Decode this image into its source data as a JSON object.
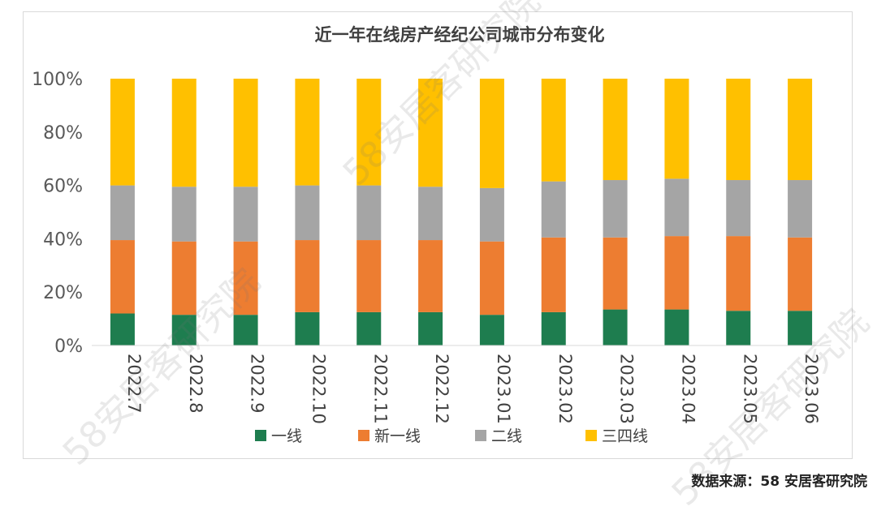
{
  "chart_data": {
    "type": "bar",
    "stacked": true,
    "title": "近一年在线房产经纪公司城市分布变化",
    "categories": [
      "2022.7",
      "2022.8",
      "2022.9",
      "2022.10",
      "2022.11",
      "2022.12",
      "2023.01",
      "2023.02",
      "2023.03",
      "2023.04",
      "2023.05",
      "2023.06"
    ],
    "series": [
      {
        "name": "一线",
        "color": "#1e7d4f",
        "values": [
          12,
          11.5,
          11.5,
          12.5,
          12.5,
          12.5,
          11.5,
          12.5,
          13.5,
          13.5,
          13,
          13
        ]
      },
      {
        "name": "新一线",
        "color": "#ed7d31",
        "values": [
          27.5,
          27.5,
          27.5,
          27,
          27,
          27,
          27.5,
          28,
          27,
          27.5,
          28,
          27.5
        ]
      },
      {
        "name": "二线",
        "color": "#a5a5a5",
        "values": [
          20.5,
          20.5,
          20.5,
          20.5,
          20.5,
          20,
          20,
          21,
          21.5,
          21.5,
          21,
          21.5
        ]
      },
      {
        "name": "三四线",
        "color": "#ffc000",
        "values": [
          40,
          40.5,
          40.5,
          40,
          40,
          40.5,
          41,
          38.5,
          38,
          37.5,
          38,
          38
        ]
      }
    ],
    "ylim": [
      0,
      100
    ],
    "yticks": [
      "0%",
      "20%",
      "40%",
      "60%",
      "80%",
      "100%"
    ],
    "xlabel": "",
    "ylabel": "",
    "legend_position": "bottom",
    "grid": false
  },
  "watermark": "58安居客研究院",
  "source_text": "数据来源：58 安居客研究院"
}
